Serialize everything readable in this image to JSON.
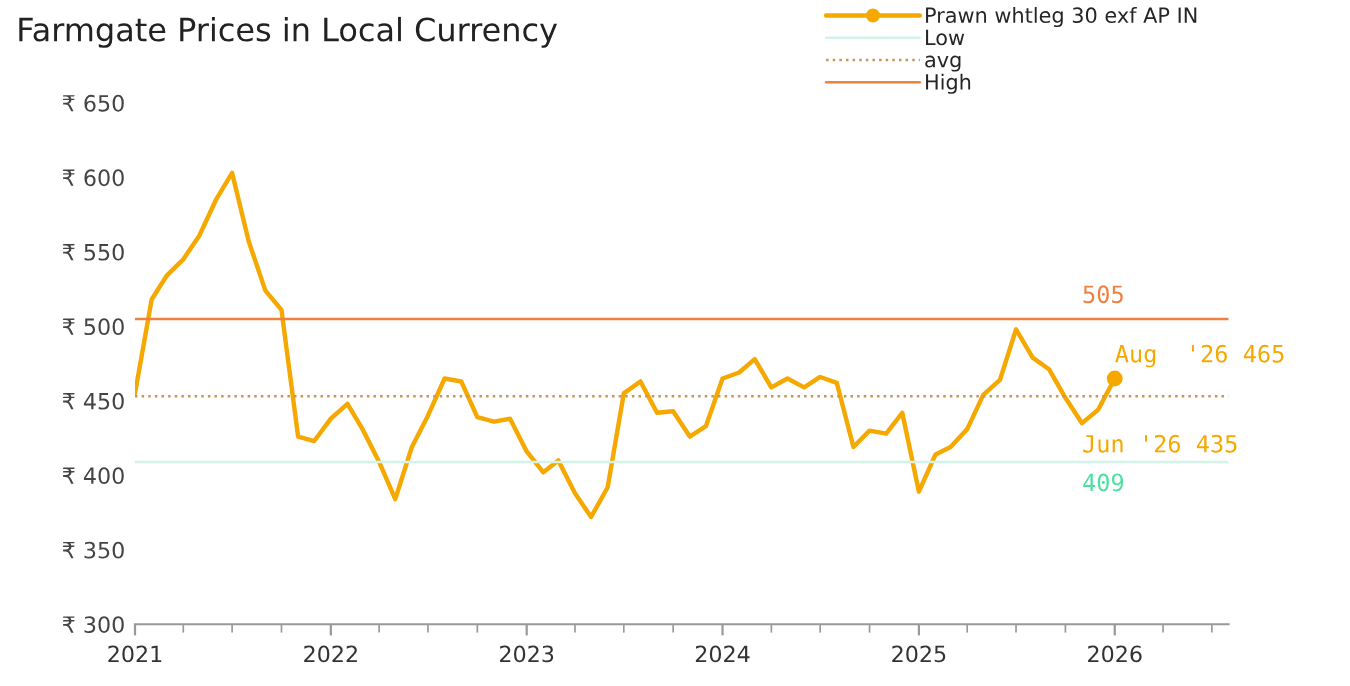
{
  "chart_data": {
    "type": "line",
    "title": "Farmgate Prices in Local Currency",
    "x": [
      "2021-01",
      "2021-02",
      "2021-03",
      "2021-04",
      "2021-05",
      "2021-06",
      "2021-07",
      "2021-08",
      "2021-09",
      "2021-10",
      "2021-11",
      "2021-12",
      "2022-01",
      "2022-02",
      "2022-03",
      "2022-04",
      "2022-05",
      "2022-06",
      "2022-07",
      "2022-08",
      "2022-09",
      "2022-10",
      "2022-11",
      "2022-12",
      "2023-01",
      "2023-02",
      "2023-03",
      "2023-04",
      "2023-05",
      "2023-06",
      "2023-07",
      "2023-08",
      "2023-09",
      "2023-10",
      "2023-11",
      "2023-12",
      "2024-01",
      "2024-02",
      "2024-03",
      "2024-04",
      "2024-05",
      "2024-06",
      "2024-07",
      "2024-08",
      "2024-09",
      "2024-10",
      "2024-11",
      "2024-12",
      "2025-01",
      "2025-02",
      "2025-03",
      "2025-04",
      "2025-05",
      "2025-06",
      "2025-07",
      "2025-08",
      "2025-09",
      "2025-10",
      "2025-11",
      "2025-12",
      "2026-01"
    ],
    "series": [
      {
        "name": "Prawn whtleg 30 exf AP IN",
        "color": "#f5a800",
        "values": [
          455,
          518,
          534,
          545,
          561,
          585,
          603,
          557,
          524,
          511,
          426,
          423,
          438,
          448,
          431,
          409,
          384,
          419,
          440,
          465,
          463,
          439,
          436,
          438,
          416,
          402,
          410,
          388,
          372,
          392,
          455,
          463,
          442,
          443,
          426,
          433,
          465,
          469,
          478,
          459,
          465,
          459,
          466,
          462,
          419,
          430,
          428,
          442,
          389,
          414,
          419,
          431,
          454,
          464,
          498,
          479,
          471,
          452,
          435,
          444,
          465
        ]
      },
      {
        "name": "Low",
        "type": "line",
        "color": "#d4f3e8",
        "line_style": "solid",
        "x": [
          "2021-01",
          "2026-08"
        ],
        "values": [
          409,
          409
        ]
      },
      {
        "name": "avg",
        "type": "line",
        "color": "#c8955a",
        "line_style": "dotted",
        "x": [
          "2021-01",
          "2026-08"
        ],
        "values": [
          453,
          453
        ]
      },
      {
        "name": "High",
        "type": "line",
        "color": "#f08040",
        "line_style": "solid",
        "x": [
          "2021-01",
          "2026-08"
        ],
        "values": [
          505,
          505
        ]
      }
    ],
    "annotations": [
      {
        "text": "505",
        "x": "2025-11",
        "y": 505
      },
      {
        "text": "409",
        "x": "2025-11",
        "y": 409
      },
      {
        "text": "Aug  '26 465",
        "x": "2026-01",
        "y": 465
      },
      {
        "text": "Jun '26 435",
        "x": "2025-11",
        "y": 435
      }
    ],
    "xlim": [
      "2021-01",
      "2026-08"
    ],
    "xticks": [
      "2021",
      "2022",
      "2023",
      "2024",
      "2025",
      "2026"
    ],
    "ylim": [
      300,
      650
    ],
    "yticks": [
      {
        "value": 300,
        "label": "₹ 300"
      },
      {
        "value": 350,
        "label": "₹ 350"
      },
      {
        "value": 400,
        "label": "₹ 400"
      },
      {
        "value": 450,
        "label": "₹ 450"
      },
      {
        "value": 500,
        "label": "₹ 500"
      },
      {
        "value": 550,
        "label": "₹ 550"
      },
      {
        "value": 600,
        "label": "₹ 600"
      },
      {
        "value": 650,
        "label": "₹ 650"
      }
    ],
    "grid": false,
    "legend": "top right"
  }
}
